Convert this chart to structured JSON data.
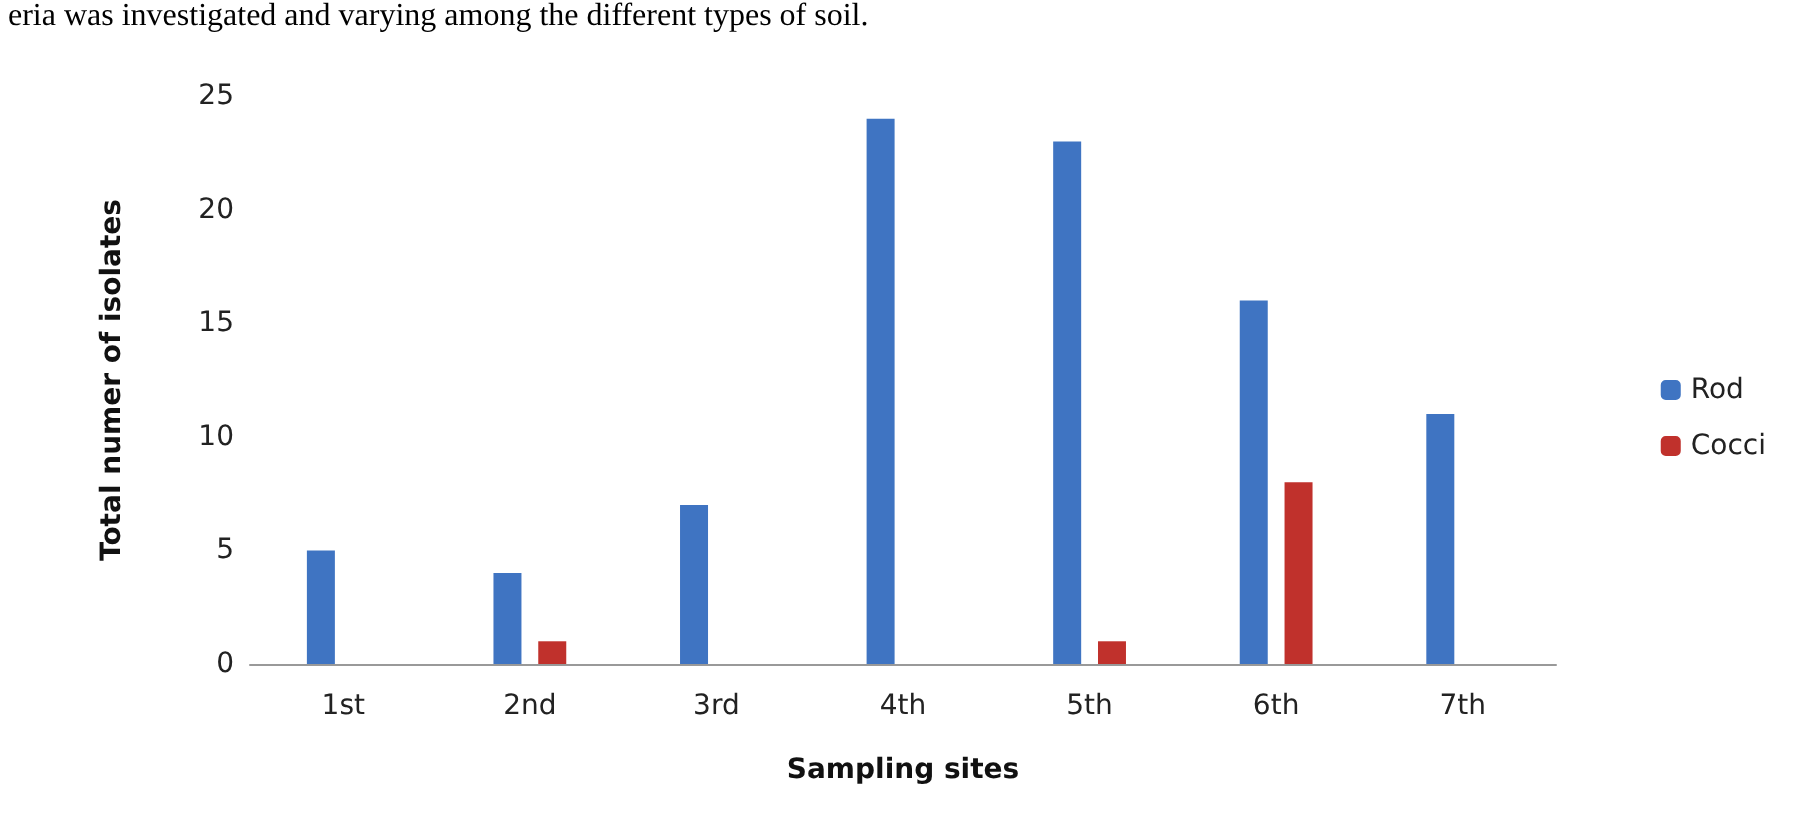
{
  "chart_data": {
    "type": "bar",
    "annotations": [
      "eria was investigated and varying among the different types of soil."
    ],
    "xlabel": "Sampling sites",
    "ylabel": "Total numer of isolates",
    "categories": [
      "1st",
      "2nd",
      "3rd",
      "4th",
      "5th",
      "6th",
      "7th"
    ],
    "series": [
      {
        "name": "Rod",
        "color": "#3f74c2",
        "values": [
          5,
          4,
          7,
          24,
          23,
          16,
          11
        ]
      },
      {
        "name": "Cocci",
        "color": "#c0312c",
        "values": [
          0,
          1,
          0,
          0,
          1,
          8,
          0
        ]
      }
    ],
    "ylim": [
      0,
      25
    ],
    "yticks": [
      0,
      5,
      10,
      15,
      20,
      25
    ],
    "grid": false,
    "legend": "right"
  }
}
